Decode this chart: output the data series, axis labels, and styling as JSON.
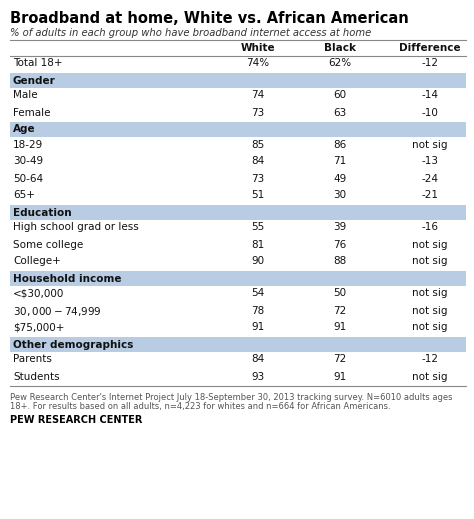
{
  "title": "Broadband at home, White vs. African American",
  "subtitle": "% of adults in each group who have broadband internet access at home",
  "col_headers": [
    "White",
    "Black",
    "Difference"
  ],
  "rows": [
    {
      "label": "Total 18+",
      "white": "74%",
      "black": "62%",
      "diff": "-12",
      "is_header": false,
      "is_total": true
    },
    {
      "label": "Gender",
      "white": "",
      "black": "",
      "diff": "",
      "is_header": true,
      "is_total": false
    },
    {
      "label": "Male",
      "white": "74",
      "black": "60",
      "diff": "-14",
      "is_header": false,
      "is_total": false
    },
    {
      "label": "Female",
      "white": "73",
      "black": "63",
      "diff": "-10",
      "is_header": false,
      "is_total": false
    },
    {
      "label": "Age",
      "white": "",
      "black": "",
      "diff": "",
      "is_header": true,
      "is_total": false
    },
    {
      "label": "18-29",
      "white": "85",
      "black": "86",
      "diff": "not sig",
      "is_header": false,
      "is_total": false
    },
    {
      "label": "30-49",
      "white": "84",
      "black": "71",
      "diff": "-13",
      "is_header": false,
      "is_total": false
    },
    {
      "label": "50-64",
      "white": "73",
      "black": "49",
      "diff": "-24",
      "is_header": false,
      "is_total": false
    },
    {
      "label": "65+",
      "white": "51",
      "black": "30",
      "diff": "-21",
      "is_header": false,
      "is_total": false
    },
    {
      "label": "Education",
      "white": "",
      "black": "",
      "diff": "",
      "is_header": true,
      "is_total": false
    },
    {
      "label": "High school grad or less",
      "white": "55",
      "black": "39",
      "diff": "-16",
      "is_header": false,
      "is_total": false
    },
    {
      "label": "Some college",
      "white": "81",
      "black": "76",
      "diff": "not sig",
      "is_header": false,
      "is_total": false
    },
    {
      "label": "College+",
      "white": "90",
      "black": "88",
      "diff": "not sig",
      "is_header": false,
      "is_total": false
    },
    {
      "label": "Household income",
      "white": "",
      "black": "",
      "diff": "",
      "is_header": true,
      "is_total": false
    },
    {
      "label": "<$30,000",
      "white": "54",
      "black": "50",
      "diff": "not sig",
      "is_header": false,
      "is_total": false
    },
    {
      "label": "$30,000-$74,999",
      "white": "78",
      "black": "72",
      "diff": "not sig",
      "is_header": false,
      "is_total": false
    },
    {
      "label": "$75,000+",
      "white": "91",
      "black": "91",
      "diff": "not sig",
      "is_header": false,
      "is_total": false
    },
    {
      "label": "Other demographics",
      "white": "",
      "black": "",
      "diff": "",
      "is_header": true,
      "is_total": false
    },
    {
      "label": "Parents",
      "white": "84",
      "black": "72",
      "diff": "-12",
      "is_header": false,
      "is_total": false
    },
    {
      "label": "Students",
      "white": "93",
      "black": "91",
      "diff": "not sig",
      "is_header": false,
      "is_total": false
    }
  ],
  "footnote1": "Pew Research Center's Internet Project July 18-September 30, 2013 tracking survey. N=6010 adults ages",
  "footnote2": "18+. For results based on all adults, n=4,223 for whites and n=664 for African Americans.",
  "source": "PEW RESEARCH CENTER",
  "header_bg": "#b8cce4",
  "text_color": "#111111",
  "title_color": "#000000"
}
